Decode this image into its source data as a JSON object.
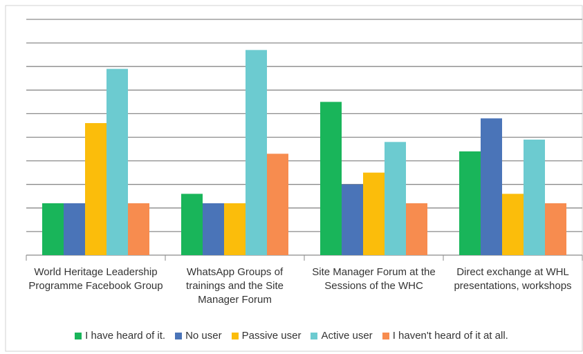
{
  "chart_data": {
    "type": "bar",
    "categories": [
      "World Heritage Leadership Programme Facebook Group",
      "WhatsApp Groups of trainings and the Site Manager Forum",
      "Site Manager Forum at the Sessions of the WHC",
      "Direct exchange at WHL presentations, workshops"
    ],
    "series": [
      {
        "name": "I have heard of it.",
        "color": "#19b55a",
        "values": [
          2.2,
          2.6,
          6.5,
          4.4
        ]
      },
      {
        "name": "No user",
        "color": "#4a74b8",
        "values": [
          2.2,
          2.2,
          3.0,
          5.8
        ]
      },
      {
        "name": "Passive user",
        "color": "#fbbd0b",
        "values": [
          5.6,
          2.2,
          3.5,
          2.6
        ]
      },
      {
        "name": "Active user",
        "color": "#6ccbd0",
        "values": [
          7.9,
          8.7,
          4.8,
          4.9
        ]
      },
      {
        "name": "I haven't heard of it at all.",
        "color": "#f78c4f",
        "values": [
          2.2,
          4.3,
          2.2,
          2.2
        ]
      }
    ],
    "ylim": [
      0,
      10
    ],
    "yticks": [
      1,
      2,
      3,
      4,
      5,
      6,
      7,
      8,
      9,
      10
    ],
    "grid": true
  }
}
